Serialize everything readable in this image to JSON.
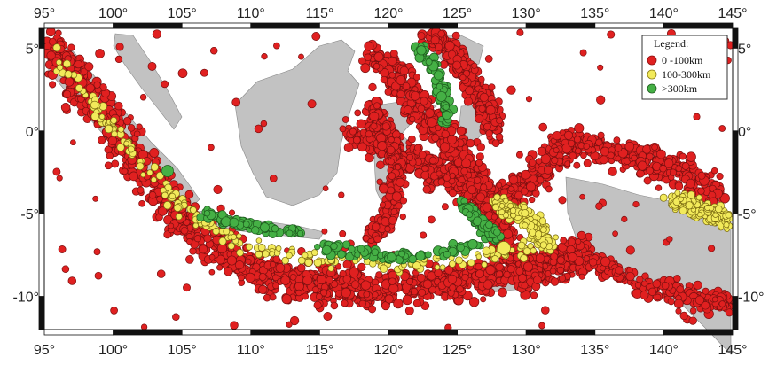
{
  "map": {
    "lon_ticks": [
      "95°",
      "100°",
      "105°",
      "110°",
      "115°",
      "120°",
      "125°",
      "130°",
      "135°",
      "140°",
      "145°"
    ],
    "lat_ticks": [
      "5°",
      "0°",
      "-5°",
      "-10°"
    ],
    "legend": {
      "title": "Legend:",
      "entries": [
        {
          "label": "0 -100km",
          "color": "#e02020"
        },
        {
          "label": "100-300km",
          "color": "#f2ea5a"
        },
        {
          "label": ">300km",
          "color": "#45b045"
        }
      ]
    },
    "colors": {
      "land": "#c2c2c2",
      "sea": "#ffffff",
      "shallow": "#e02020",
      "intermediate": "#f2ea5a",
      "deep": "#45b045",
      "frame_dark": "#111111",
      "frame_light": "#ffffff"
    }
  }
}
